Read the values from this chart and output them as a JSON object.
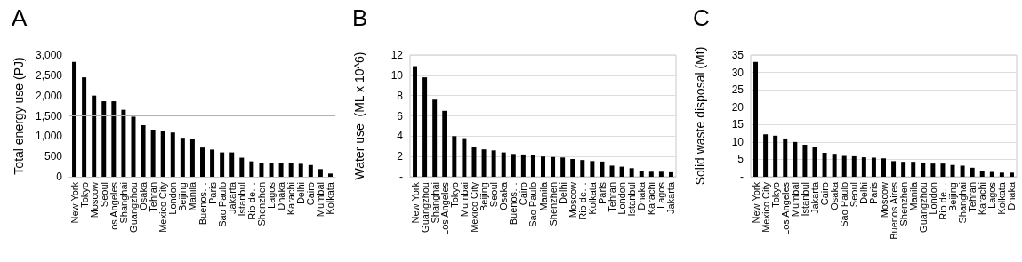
{
  "chart_data": [
    {
      "type": "bar",
      "title": "A",
      "ylabel": "Total energy use (PJ)",
      "categories": [
        "New York",
        "Tokyo",
        "Moscow",
        "Seoul",
        "Los Angeles",
        "Shanghai",
        "Guangzhou",
        "Osaka",
        "Tehran",
        "Mexico City",
        "London",
        "Beijing",
        "Manila",
        "Buenos…",
        "Paris",
        "Sao Paulo",
        "Jakarta",
        "Istanbul",
        "Rio de…",
        "Shenzhen",
        "Lagos",
        "Dhaka",
        "Karachi",
        "Delhi",
        "Cairo",
        "Mumbai",
        "Kolkata"
      ],
      "series": [
        {
          "color": "#000000",
          "values": [
            2830,
            2450,
            2000,
            1860,
            1860,
            1650,
            1480,
            1270,
            1160,
            1120,
            1090,
            960,
            930,
            720,
            670,
            600,
            600,
            470,
            380,
            350,
            350,
            350,
            340,
            320,
            290,
            190,
            80
          ]
        }
      ],
      "ylim": [
        0,
        3000
      ],
      "yticks": [
        0,
        {
          "value": 500,
          "label": "500"
        },
        {
          "value": 1000,
          "label": "1,000"
        },
        {
          "value": 1500,
          "label": "1,500"
        },
        {
          "value": 2000,
          "label": "2,000"
        },
        {
          "value": 2500,
          "label": "2,500"
        },
        {
          "value": 3000,
          "label": "3,000"
        }
      ],
      "grid": false,
      "ref_lines": [
        {
          "axis": "y",
          "value": 1500,
          "color": "#b0b0b0"
        }
      ]
    },
    {
      "type": "bar",
      "title": "B",
      "ylabel": "Water use  (ML x 10^6)",
      "categories": [
        "New York",
        "Guangzhou",
        "Shanghai",
        "Los Angeles",
        "Tokyo",
        "Mumbai",
        "Mexico City",
        "Beijing",
        "Seoul",
        "Osaka",
        "Buenos…",
        "Cairo",
        "Sao Paulo",
        "Manila",
        "Shenzhen",
        "Delhi",
        "Moscow",
        "Rio de…",
        "Kolkata",
        "Paris",
        "Tehran",
        "London",
        "Istanbul",
        "Dhaka",
        "Karachi",
        "Lagos",
        "Jakarta"
      ],
      "series": [
        {
          "color": "#000000",
          "values": [
            10.9,
            9.8,
            7.6,
            6.5,
            4.0,
            3.8,
            2.9,
            2.7,
            2.6,
            2.4,
            2.25,
            2.2,
            2.1,
            2.0,
            1.95,
            1.9,
            1.75,
            1.65,
            1.55,
            1.5,
            1.1,
            1.0,
            0.85,
            0.55,
            0.5,
            0.5,
            0.45
          ]
        }
      ],
      "ylim": [
        0,
        12
      ],
      "yticks": [
        {
          "value": 0,
          "label": "-"
        },
        2,
        4,
        6,
        8,
        10,
        12
      ],
      "grid": "y"
    },
    {
      "type": "bar",
      "title": "C",
      "ylabel": "Solid waste disposal (Mt)",
      "categories": [
        "New York",
        "Mexico City",
        "Tokyo",
        "Los Angeles",
        "Mumbai",
        "Istanbul",
        "Jakarta",
        "Cairo",
        "Osaka",
        "Sao Paulo",
        "Seoul",
        "Delhi",
        "Paris",
        "Moscow",
        "Buenos Aires",
        "Shenzhen",
        "Manila",
        "Guangzhou",
        "London",
        "Rio de…",
        "Beijing",
        "Shanghai",
        "Tehran",
        "Karachi",
        "Lagos",
        "Kolkata",
        "Dhaka"
      ],
      "series": [
        {
          "color": "#000000",
          "values": [
            33,
            12.2,
            11.8,
            11,
            10,
            9.2,
            8.5,
            6.9,
            6.6,
            6,
            5.9,
            5.6,
            5.5,
            5.3,
            4.5,
            4.3,
            4.3,
            4.1,
            3.8,
            3.8,
            3.4,
            3.2,
            2.6,
            1.6,
            1.4,
            1.2,
            1.2
          ]
        }
      ],
      "ylim": [
        0,
        35
      ],
      "yticks": [
        {
          "value": 0,
          "label": "-"
        },
        5,
        10,
        15,
        20,
        25,
        30,
        35
      ],
      "grid": "y"
    }
  ]
}
